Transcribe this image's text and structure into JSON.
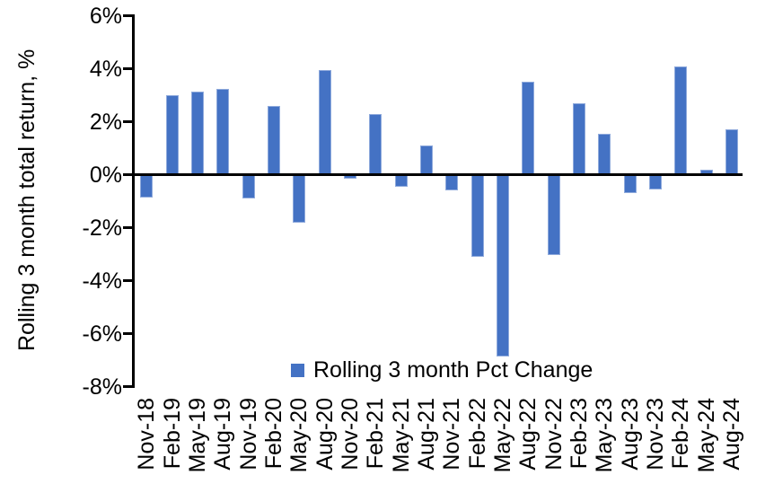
{
  "chart_data": {
    "type": "bar",
    "title": "",
    "ylabel": "Rolling 3 month total return, %",
    "xlabel": "",
    "legend": "Rolling 3 month Pct Change",
    "legend_position": "bottom-center",
    "grid": false,
    "bar_color": "#4472C4",
    "bar_edge_color": "#8FAADC",
    "axis_color": "#000000",
    "ylim": [
      -8,
      6
    ],
    "ytick_step": 2,
    "yticks": [
      6,
      4,
      2,
      0,
      -2,
      -4,
      -6,
      -8
    ],
    "ytick_labels": [
      "6%",
      "4%",
      "2%",
      "0%",
      "-2%",
      "-4%",
      "-6%",
      "-8%"
    ],
    "categories": [
      "Nov-18",
      "Feb-19",
      "May-19",
      "Aug-19",
      "Nov-19",
      "Feb-20",
      "May-20",
      "Aug-20",
      "Nov-20",
      "Feb-21",
      "May-21",
      "Aug-21",
      "Nov-21",
      "Feb-22",
      "May-22",
      "Aug-22",
      "Nov-22",
      "Feb-23",
      "May-23",
      "Aug-23",
      "Nov-23",
      "Feb-24",
      "May-24",
      "Aug-24"
    ],
    "values": [
      -0.85,
      3.0,
      3.15,
      3.25,
      -0.9,
      2.6,
      -1.8,
      3.95,
      -0.15,
      2.3,
      -0.45,
      1.1,
      -0.6,
      -3.1,
      -6.85,
      3.5,
      -3.05,
      2.7,
      1.55,
      -0.7,
      -0.55,
      4.1,
      0.2,
      1.7
    ]
  }
}
